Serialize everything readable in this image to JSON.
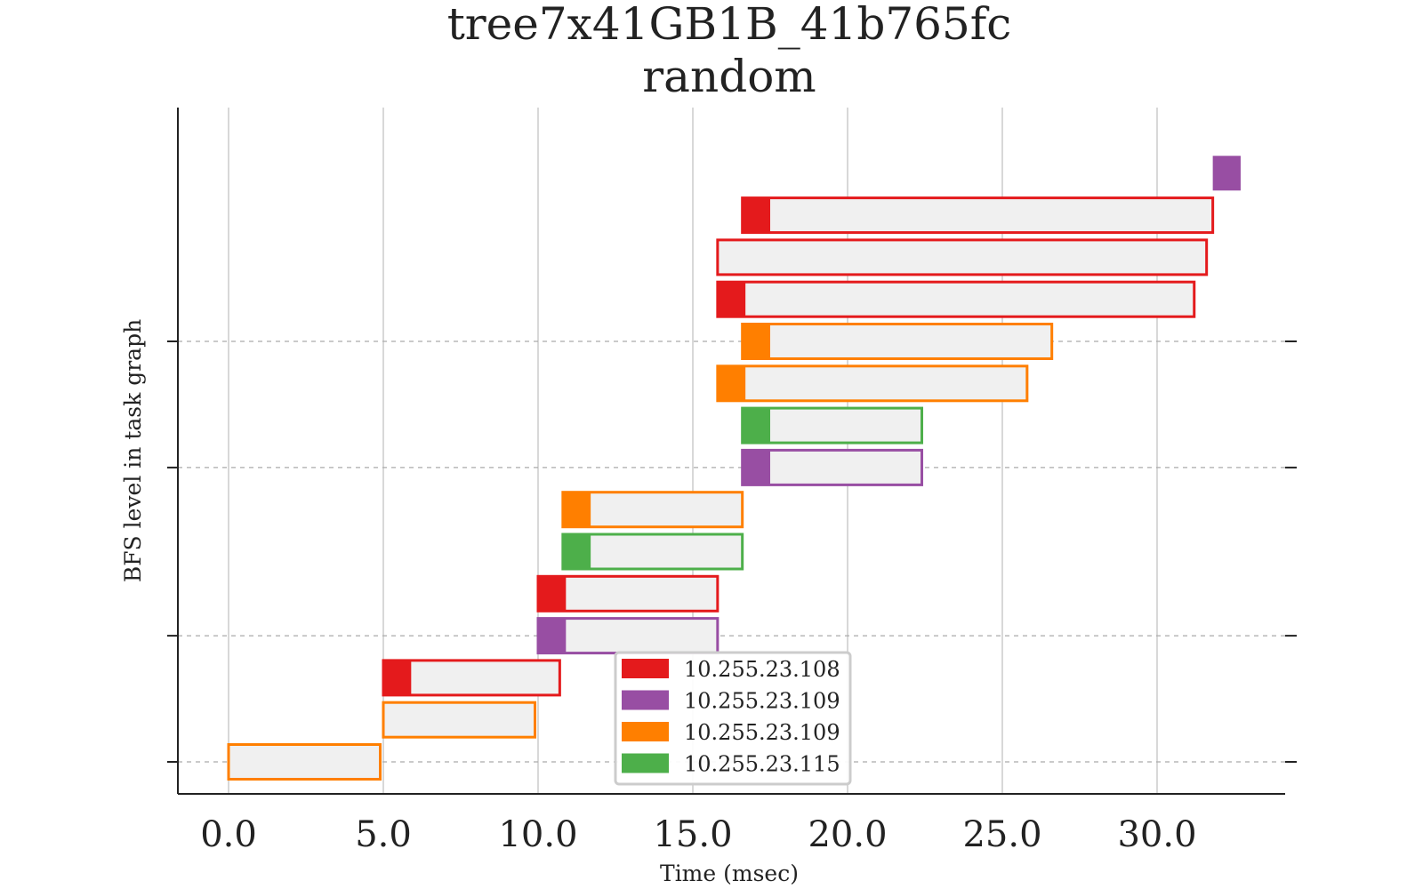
{
  "chart_data": {
    "type": "bar",
    "subtype": "gantt",
    "title": "tree7x41GB1B_41b765fc",
    "subtitle": "random",
    "xlabel": "Time (msec)",
    "ylabel": "BFS level in task graph",
    "xlim": [
      -1.6,
      34.2
    ],
    "x_ticks": [
      0.0,
      5.0,
      10.0,
      15.0,
      20.0,
      25.0,
      30.0
    ],
    "x_tick_labels": [
      "0.0",
      "5.0",
      "10.0",
      "15.0",
      "20.0",
      "25.0",
      "30.0"
    ],
    "y_tick_rows": [
      0,
      3,
      7,
      10
    ],
    "grid": {
      "x": true,
      "y": "dashed"
    },
    "legend": {
      "position": "bottom-center",
      "entries": [
        {
          "label": "10.255.23.108",
          "color": "#e41a1c"
        },
        {
          "label": "10.255.23.109",
          "color": "#984ea3"
        },
        {
          "label": "10.255.23.109",
          "color": "#ff7f00"
        },
        {
          "label": "10.255.23.115",
          "color": "#4daf4a"
        }
      ]
    },
    "fill_color": "#f0f0f0",
    "tasks": [
      {
        "row": 0,
        "start": 0.0,
        "end": 4.9,
        "lead": 0.0,
        "color": "#ff7f00"
      },
      {
        "row": 1,
        "start": 5.0,
        "end": 9.9,
        "lead": 0.0,
        "color": "#ff7f00"
      },
      {
        "row": 2,
        "start": 5.0,
        "end": 10.7,
        "lead": 0.9,
        "color": "#e41a1c"
      },
      {
        "row": 3,
        "start": 10.0,
        "end": 15.8,
        "lead": 0.9,
        "color": "#984ea3"
      },
      {
        "row": 4,
        "start": 10.0,
        "end": 15.8,
        "lead": 0.9,
        "color": "#e41a1c"
      },
      {
        "row": 5,
        "start": 10.8,
        "end": 16.6,
        "lead": 0.9,
        "color": "#4daf4a"
      },
      {
        "row": 6,
        "start": 10.8,
        "end": 16.6,
        "lead": 0.9,
        "color": "#ff7f00"
      },
      {
        "row": 7,
        "start": 16.6,
        "end": 22.4,
        "lead": 0.9,
        "color": "#984ea3"
      },
      {
        "row": 8,
        "start": 16.6,
        "end": 22.4,
        "lead": 0.9,
        "color": "#4daf4a"
      },
      {
        "row": 9,
        "start": 15.8,
        "end": 25.8,
        "lead": 0.9,
        "color": "#ff7f00"
      },
      {
        "row": 10,
        "start": 16.6,
        "end": 26.6,
        "lead": 0.9,
        "color": "#ff7f00"
      },
      {
        "row": 11,
        "start": 15.8,
        "end": 31.2,
        "lead": 0.9,
        "color": "#e41a1c"
      },
      {
        "row": 12,
        "start": 15.8,
        "end": 31.6,
        "lead": 0.0,
        "color": "#e41a1c"
      },
      {
        "row": 13,
        "start": 16.6,
        "end": 31.8,
        "lead": 0.9,
        "color": "#e41a1c"
      },
      {
        "row": 14,
        "start": 31.8,
        "end": 32.7,
        "lead": 0.9,
        "color": "#984ea3"
      }
    ]
  }
}
